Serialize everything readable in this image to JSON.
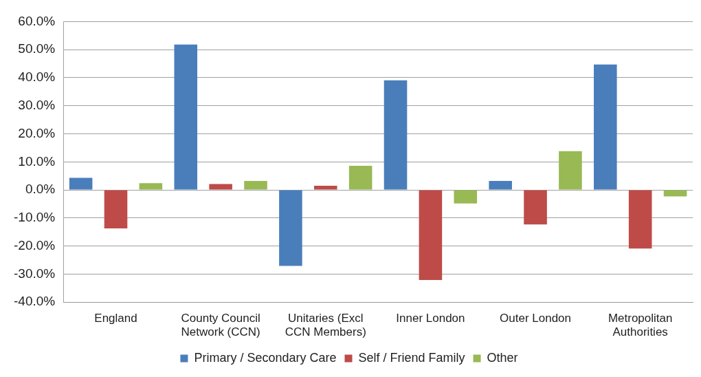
{
  "chart_data": {
    "type": "bar",
    "categories": [
      "England",
      "County Council Network (CCN)",
      "Unitaries (Excl CCN Members)",
      "Inner London",
      "Outer London",
      "Metropolitan Authorities"
    ],
    "series": [
      {
        "name": "Primary / Secondary Care",
        "color": "#4a7ebb",
        "values": [
          4.3,
          51.8,
          -27.1,
          39.1,
          3.2,
          44.7
        ]
      },
      {
        "name": "Self / Friend Family",
        "color": "#be4b48",
        "values": [
          -13.7,
          2.1,
          1.5,
          -32.1,
          -12.3,
          -20.9
        ]
      },
      {
        "name": "Other",
        "color": "#98b954",
        "values": [
          2.4,
          3.2,
          8.6,
          -4.8,
          13.8,
          -2.3
        ]
      }
    ],
    "ylim": [
      -40,
      60
    ],
    "yticks": [
      {
        "value": -40,
        "label": "-40.0%"
      },
      {
        "value": -30,
        "label": "-30.0%"
      },
      {
        "value": -20,
        "label": "-20.0%"
      },
      {
        "value": -10,
        "label": "-10.0%"
      },
      {
        "value": 0,
        "label": "0.0%"
      },
      {
        "value": 10,
        "label": "10.0%"
      },
      {
        "value": 20,
        "label": "20.0%"
      },
      {
        "value": 30,
        "label": "30.0%"
      },
      {
        "value": 40,
        "label": "40.0%"
      },
      {
        "value": 50,
        "label": "50.0%"
      },
      {
        "value": 60,
        "label": "60.0%"
      }
    ],
    "grid": "y",
    "legend": "bottom"
  }
}
